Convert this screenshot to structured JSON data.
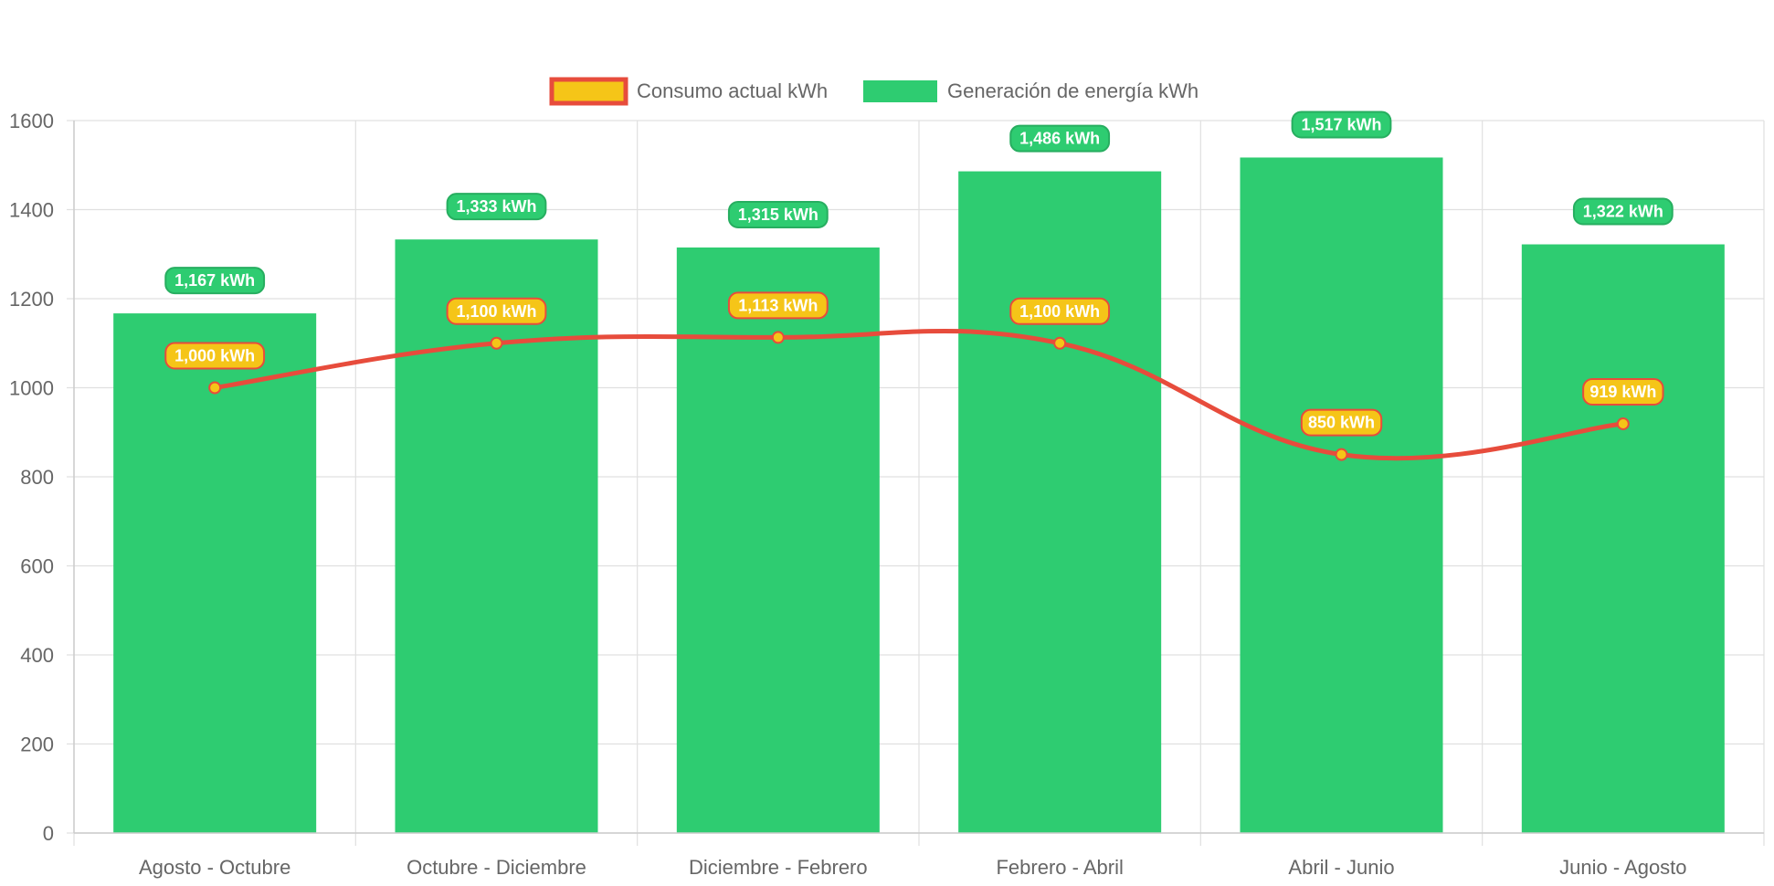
{
  "chart_data": {
    "type": "bar",
    "categories": [
      "Agosto - Octubre",
      "Octubre - Diciembre",
      "Diciembre - Febrero",
      "Febrero - Abril",
      "Abril - Junio",
      "Junio - Agosto"
    ],
    "series": [
      {
        "name": "Consumo actual kWh",
        "type": "line",
        "values": [
          1000,
          1100,
          1113,
          1100,
          850,
          919
        ],
        "labels": [
          "1,000 kWh",
          "1,100 kWh",
          "1,113 kWh",
          "1,100 kWh",
          "850 kWh",
          "919 kWh"
        ],
        "color": "#e74c3c",
        "fill": "#f5c518"
      },
      {
        "name": "Generación de energía kWh",
        "type": "bar",
        "values": [
          1167,
          1333,
          1315,
          1486,
          1517,
          1322
        ],
        "labels": [
          "1,167 kWh",
          "1,333 kWh",
          "1,315 kWh",
          "1,486 kWh",
          "1,517 kWh",
          "1,322 kWh"
        ],
        "color": "#2ecc71"
      }
    ],
    "ylim": [
      0,
      1600
    ],
    "yticks": [
      "0",
      "200",
      "400",
      "600",
      "800",
      "1000",
      "1200",
      "1400",
      "1600"
    ],
    "grid": true,
    "legend": "top-center",
    "title": "",
    "xlabel": "",
    "ylabel": ""
  }
}
